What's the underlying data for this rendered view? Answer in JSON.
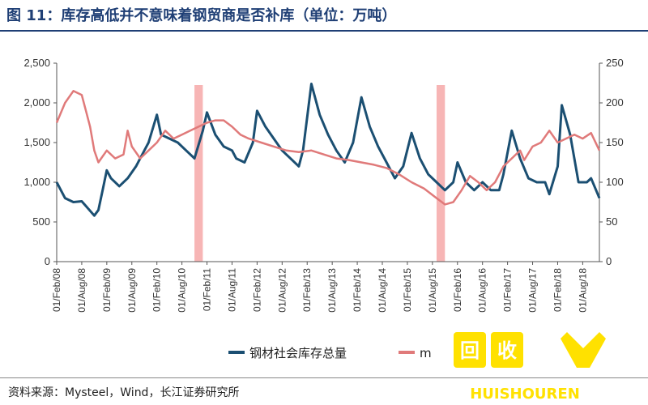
{
  "header": {
    "title": "图 11：库存高低并不意味着钢贸商是否补库（单位：万吨）"
  },
  "footer": {
    "source": "资料来源：Mysteel，Wind，长江证券研究所"
  },
  "watermark": {
    "brand": "HUISHOUREN",
    "glyphs": "回收人"
  },
  "colors": {
    "series1": "#1b4f72",
    "series2": "#e07a7a",
    "highlight": "#f7b5b5",
    "watermark": "#ffe100",
    "title": "#1f3f75"
  },
  "chart_data": {
    "type": "line",
    "title": "",
    "xlabel": "",
    "ylabel": "",
    "x_tick_labels": [
      "01/Feb/08",
      "01/Aug/08",
      "01/Feb/09",
      "01/Aug/09",
      "01/Feb/10",
      "01/Aug/10",
      "01/Feb/11",
      "01/Aug/11",
      "01/Feb/12",
      "01/Aug/12",
      "01/Feb/13",
      "01/Aug/13",
      "01/Feb/14",
      "01/Aug/14",
      "01/Feb/15",
      "01/Aug/15",
      "01/Feb/16",
      "01/Aug/16",
      "01/Feb/17",
      "01/Aug/17",
      "01/Feb/18",
      "01/Aug/18"
    ],
    "y_left": {
      "ylim": [
        0,
        2500
      ],
      "ticks": [
        "0",
        "500",
        "1,000",
        "1,500",
        "2,000",
        "2,500"
      ]
    },
    "y_right": {
      "ylim": [
        0,
        250
      ],
      "ticks": [
        "0",
        "50",
        "100",
        "150",
        "200",
        "250"
      ]
    },
    "highlight_periods": [
      {
        "from": "2010-11",
        "to": "2011-01"
      },
      {
        "from": "2015-09",
        "to": "2015-11"
      }
    ],
    "legend": {
      "position": "bottom",
      "visible_labels": [
        "钢材社会库存总量",
        "m"
      ]
    },
    "series": [
      {
        "name": "钢材社会库存总量",
        "axis": "left",
        "color": "#1b4f72",
        "points": [
          [
            "2008-02",
            1000
          ],
          [
            "2008-04",
            800
          ],
          [
            "2008-06",
            750
          ],
          [
            "2008-08",
            760
          ],
          [
            "2008-09",
            700
          ],
          [
            "2008-11",
            580
          ],
          [
            "2008-12",
            650
          ],
          [
            "2009-01",
            900
          ],
          [
            "2009-02",
            1150
          ],
          [
            "2009-03",
            1050
          ],
          [
            "2009-05",
            950
          ],
          [
            "2009-07",
            1050
          ],
          [
            "2009-09",
            1200
          ],
          [
            "2009-11",
            1400
          ],
          [
            "2009-12",
            1500
          ],
          [
            "2010-02",
            1850
          ],
          [
            "2010-03",
            1600
          ],
          [
            "2010-05",
            1550
          ],
          [
            "2010-07",
            1500
          ],
          [
            "2010-09",
            1400
          ],
          [
            "2010-11",
            1300
          ],
          [
            "2011-01",
            1650
          ],
          [
            "2011-02",
            1880
          ],
          [
            "2011-04",
            1600
          ],
          [
            "2011-06",
            1450
          ],
          [
            "2011-08",
            1400
          ],
          [
            "2011-09",
            1300
          ],
          [
            "2011-11",
            1250
          ],
          [
            "2012-01",
            1500
          ],
          [
            "2012-02",
            1900
          ],
          [
            "2012-04",
            1700
          ],
          [
            "2012-06",
            1550
          ],
          [
            "2012-08",
            1400
          ],
          [
            "2012-10",
            1300
          ],
          [
            "2012-12",
            1200
          ],
          [
            "2013-01",
            1400
          ],
          [
            "2013-03",
            2240
          ],
          [
            "2013-05",
            1850
          ],
          [
            "2013-07",
            1600
          ],
          [
            "2013-09",
            1400
          ],
          [
            "2013-11",
            1250
          ],
          [
            "2014-01",
            1500
          ],
          [
            "2014-03",
            2070
          ],
          [
            "2014-05",
            1700
          ],
          [
            "2014-07",
            1450
          ],
          [
            "2014-09",
            1250
          ],
          [
            "2014-11",
            1050
          ],
          [
            "2015-01",
            1200
          ],
          [
            "2015-03",
            1620
          ],
          [
            "2015-05",
            1300
          ],
          [
            "2015-07",
            1100
          ],
          [
            "2015-09",
            1000
          ],
          [
            "2015-11",
            900
          ],
          [
            "2016-01",
            1000
          ],
          [
            "2016-02",
            1250
          ],
          [
            "2016-04",
            1000
          ],
          [
            "2016-06",
            900
          ],
          [
            "2016-08",
            1000
          ],
          [
            "2016-10",
            900
          ],
          [
            "2016-12",
            900
          ],
          [
            "2017-01",
            1100
          ],
          [
            "2017-03",
            1650
          ],
          [
            "2017-05",
            1300
          ],
          [
            "2017-07",
            1050
          ],
          [
            "2017-09",
            1000
          ],
          [
            "2017-11",
            1000
          ],
          [
            "2017-12",
            850
          ],
          [
            "2018-02",
            1200
          ],
          [
            "2018-03",
            1970
          ],
          [
            "2018-05",
            1600
          ],
          [
            "2018-07",
            1000
          ],
          [
            "2018-09",
            1000
          ],
          [
            "2018-10",
            1050
          ],
          [
            "2018-12",
            800
          ]
        ]
      },
      {
        "name": "m",
        "axis": "right",
        "color": "#e07a7a",
        "points": [
          [
            "2008-02",
            175
          ],
          [
            "2008-04",
            200
          ],
          [
            "2008-06",
            215
          ],
          [
            "2008-08",
            210
          ],
          [
            "2008-09",
            190
          ],
          [
            "2008-10",
            170
          ],
          [
            "2008-11",
            140
          ],
          [
            "2008-12",
            125
          ],
          [
            "2009-02",
            140
          ],
          [
            "2009-04",
            130
          ],
          [
            "2009-06",
            135
          ],
          [
            "2009-07",
            165
          ],
          [
            "2009-08",
            145
          ],
          [
            "2009-10",
            130
          ],
          [
            "2009-12",
            140
          ],
          [
            "2010-02",
            150
          ],
          [
            "2010-04",
            165
          ],
          [
            "2010-06",
            155
          ],
          [
            "2010-08",
            160
          ],
          [
            "2010-10",
            165
          ],
          [
            "2010-12",
            170
          ],
          [
            "2011-02",
            175
          ],
          [
            "2011-04",
            178
          ],
          [
            "2011-06",
            178
          ],
          [
            "2011-08",
            170
          ],
          [
            "2011-10",
            160
          ],
          [
            "2011-12",
            155
          ],
          [
            "2012-03",
            150
          ],
          [
            "2012-06",
            145
          ],
          [
            "2012-09",
            140
          ],
          [
            "2012-12",
            138
          ],
          [
            "2013-03",
            140
          ],
          [
            "2013-06",
            135
          ],
          [
            "2013-09",
            130
          ],
          [
            "2013-12",
            128
          ],
          [
            "2014-03",
            125
          ],
          [
            "2014-06",
            122
          ],
          [
            "2014-09",
            118
          ],
          [
            "2014-12",
            110
          ],
          [
            "2015-03",
            100
          ],
          [
            "2015-06",
            92
          ],
          [
            "2015-09",
            80
          ],
          [
            "2015-11",
            72
          ],
          [
            "2016-01",
            75
          ],
          [
            "2016-03",
            90
          ],
          [
            "2016-05",
            108
          ],
          [
            "2016-07",
            100
          ],
          [
            "2016-09",
            90
          ],
          [
            "2016-11",
            100
          ],
          [
            "2017-01",
            120
          ],
          [
            "2017-03",
            130
          ],
          [
            "2017-05",
            140
          ],
          [
            "2017-06",
            128
          ],
          [
            "2017-08",
            145
          ],
          [
            "2017-10",
            150
          ],
          [
            "2017-12",
            165
          ],
          [
            "2018-02",
            150
          ],
          [
            "2018-04",
            155
          ],
          [
            "2018-06",
            160
          ],
          [
            "2018-08",
            155
          ],
          [
            "2018-10",
            162
          ],
          [
            "2018-12",
            140
          ]
        ]
      }
    ]
  }
}
